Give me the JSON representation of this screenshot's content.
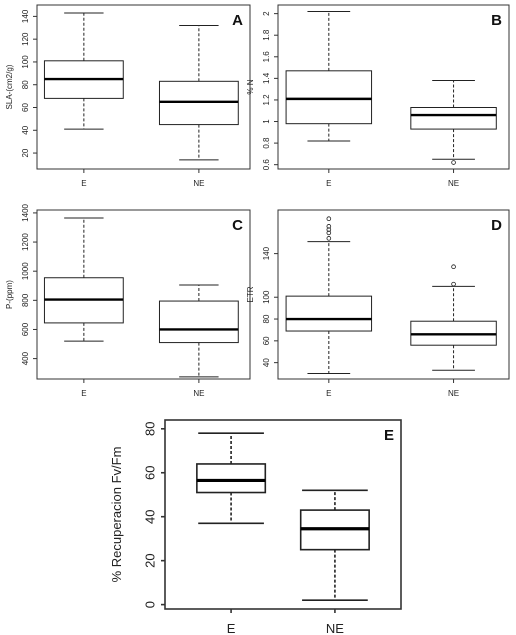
{
  "chart_data": [
    {
      "type": "box",
      "panel_label": "A",
      "ylabel": "SLA-(cm2/g)",
      "categories": [
        "E",
        "NE"
      ],
      "yticks": [
        20,
        40,
        60,
        80,
        100,
        120,
        140
      ],
      "ylim": [
        6,
        150
      ],
      "boxes": [
        {
          "min": 41,
          "q1": 68,
          "median": 85,
          "q3": 101,
          "max": 143,
          "outliers": []
        },
        {
          "min": 14,
          "q1": 45,
          "median": 65,
          "q3": 83,
          "max": 132,
          "outliers": []
        }
      ]
    },
    {
      "type": "box",
      "panel_label": "B",
      "ylabel": "% N",
      "categories": [
        "E",
        "NE"
      ],
      "yticks": [
        0.6,
        0.8,
        1.0,
        1.2,
        1.4,
        1.6,
        1.8,
        2.0
      ],
      "ylim": [
        0.56,
        2.08
      ],
      "boxes": [
        {
          "min": 0.82,
          "q1": 0.98,
          "median": 1.21,
          "q3": 1.47,
          "max": 2.02,
          "outliers": []
        },
        {
          "min": 0.65,
          "q1": 0.93,
          "median": 1.06,
          "q3": 1.13,
          "max": 1.38,
          "outliers": [
            0.62
          ]
        }
      ]
    },
    {
      "type": "box",
      "panel_label": "C",
      "ylabel": "P-(ppm)",
      "categories": [
        "E",
        "NE"
      ],
      "yticks": [
        400,
        600,
        800,
        1000,
        1200,
        1400
      ],
      "ylim": [
        260,
        1420
      ],
      "boxes": [
        {
          "min": 520,
          "q1": 645,
          "median": 805,
          "q3": 955,
          "max": 1365,
          "outliers": []
        },
        {
          "min": 275,
          "q1": 510,
          "median": 600,
          "q3": 795,
          "max": 905,
          "outliers": []
        }
      ]
    },
    {
      "type": "box",
      "panel_label": "D",
      "ylabel": "ETR",
      "categories": [
        "E",
        "NE"
      ],
      "yticks": [
        40,
        60,
        80,
        100,
        140
      ],
      "ylim": [
        25,
        180
      ],
      "boxes": [
        {
          "min": 30,
          "q1": 69,
          "median": 80,
          "q3": 101,
          "max": 151,
          "outliers": [
            154,
            159,
            162,
            165,
            172
          ]
        },
        {
          "min": 33,
          "q1": 56,
          "median": 66,
          "q3": 78,
          "max": 110,
          "outliers": [
            112,
            128
          ]
        }
      ]
    },
    {
      "type": "box",
      "panel_label": "E",
      "ylabel": "% Recuperacion Fv/Fm",
      "categories": [
        "E",
        "NE"
      ],
      "yticks": [
        0,
        20,
        40,
        60,
        80
      ],
      "ylim": [
        -2,
        84
      ],
      "boxes": [
        {
          "min": 37,
          "q1": 51,
          "median": 56.5,
          "q3": 64,
          "max": 78,
          "outliers": []
        },
        {
          "min": 2,
          "q1": 25,
          "median": 34.5,
          "q3": 43,
          "max": 52,
          "outliers": []
        }
      ]
    }
  ]
}
